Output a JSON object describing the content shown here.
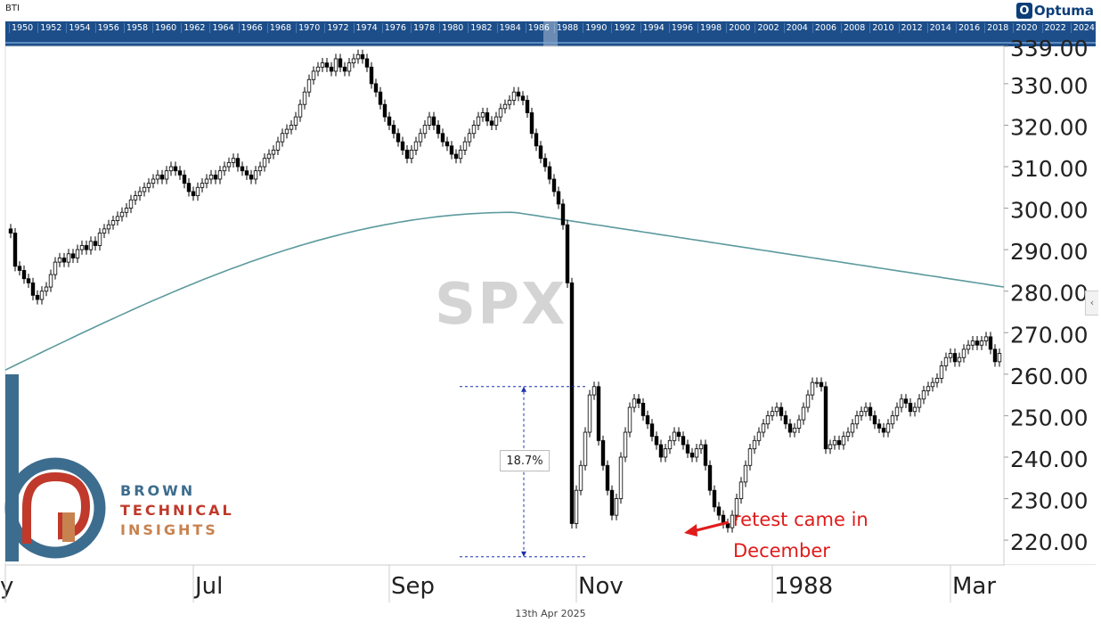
{
  "header": {
    "ticker": "BTI",
    "brand_logo": "Optuma",
    "logo_icon": "optuma-icon"
  },
  "navigator": {
    "years": [
      "1950",
      "1952",
      "1954",
      "1956",
      "1958",
      "1960",
      "1962",
      "1964",
      "1966",
      "1968",
      "1970",
      "1972",
      "1974",
      "1976",
      "1978",
      "1980",
      "1982",
      "1984",
      "1986",
      "1988",
      "1990",
      "1992",
      "1994",
      "1996",
      "1998",
      "2000",
      "2002",
      "2004",
      "2006",
      "2008",
      "2010",
      "2012",
      "2014",
      "2016",
      "2018",
      "2020",
      "2022",
      "2024"
    ]
  },
  "watermark": "SPX",
  "footer_date": "13th Apr 2025",
  "branding": {
    "line1": "BROWN",
    "line2": "TECHNICAL",
    "line3": "INSIGHTS",
    "colors": {
      "brown": "#3d6d8e",
      "technical": "#c0392b",
      "insights": "#c8824f"
    }
  },
  "annotation": {
    "line1": "retest came in",
    "line2": "December",
    "color": "#e01b1b"
  },
  "measure_label": "18.7%",
  "chart_data": {
    "type": "candlestick",
    "title": "SPX",
    "xlabel": "",
    "ylabel": "",
    "ylim": [
      214,
      339
    ],
    "y_ticks": [
      220,
      230,
      240,
      250,
      260,
      270,
      280,
      290,
      300,
      310,
      320,
      330,
      339
    ],
    "y_tick_labels": [
      "220.00",
      "230.00",
      "240.00",
      "250.00",
      "260.00",
      "270.00",
      "280.00",
      "290.00",
      "300.00",
      "310.00",
      "320.00",
      "330.00",
      "339.00"
    ],
    "x_ticks": [
      {
        "label": "y",
        "idx": -3
      },
      {
        "label": "Jul",
        "idx": 42
      },
      {
        "label": "Sep",
        "idx": 86
      },
      {
        "label": "Nov",
        "idx": 128
      },
      {
        "label": "1988",
        "idx": 172
      },
      {
        "label": "Mar",
        "idx": 212
      }
    ],
    "series": [
      {
        "name": "SPX",
        "closes": [
          294,
          286,
          285,
          283,
          282,
          279,
          278,
          280,
          281,
          284,
          287,
          288,
          287,
          289,
          288,
          290,
          291,
          290,
          292,
          291,
          294,
          295,
          296,
          297,
          298,
          299,
          300,
          302,
          303,
          304,
          305,
          306,
          307,
          308,
          307,
          309,
          310,
          309,
          308,
          306,
          304,
          303,
          305,
          306,
          307,
          308,
          307,
          309,
          310,
          311,
          312,
          310,
          309,
          308,
          307,
          309,
          310,
          312,
          313,
          314,
          316,
          318,
          319,
          320,
          322,
          325,
          328,
          331,
          333,
          334,
          335,
          334,
          333,
          336,
          334,
          333,
          335,
          336,
          337,
          336,
          334,
          330,
          328,
          325,
          322,
          320,
          318,
          316,
          314,
          312,
          314,
          316,
          318,
          320,
          322,
          320,
          318,
          316,
          315,
          313,
          312,
          314,
          316,
          318,
          320,
          322,
          323,
          321,
          320,
          322,
          324,
          325,
          326,
          328,
          327,
          326,
          323,
          318,
          315,
          312,
          310,
          307,
          304,
          301,
          296,
          282,
          224,
          232,
          238,
          246,
          255,
          257,
          244,
          238,
          232,
          226,
          230,
          240,
          246,
          252,
          254,
          253,
          250,
          248,
          245,
          243,
          240,
          242,
          244,
          246,
          245,
          243,
          241,
          240,
          242,
          243,
          238,
          232,
          228,
          226,
          224,
          223,
          226,
          230,
          234,
          238,
          242,
          244,
          246,
          248,
          250,
          251,
          252,
          250,
          248,
          246,
          247,
          249,
          252,
          255,
          258,
          258,
          257,
          242,
          243,
          244,
          243,
          245,
          246,
          248,
          250,
          251,
          252,
          250,
          248,
          247,
          246,
          248,
          250,
          252,
          254,
          253,
          251,
          252,
          254,
          256,
          257,
          258,
          259,
          262,
          264,
          265,
          263,
          264,
          266,
          267,
          268,
          267,
          268,
          269,
          266,
          263,
          265,
          266
        ]
      },
      {
        "name": "200-day average",
        "values_start": 261,
        "values_peak": 299,
        "values_end": 281
      }
    ],
    "grid": false,
    "legend": "none"
  }
}
